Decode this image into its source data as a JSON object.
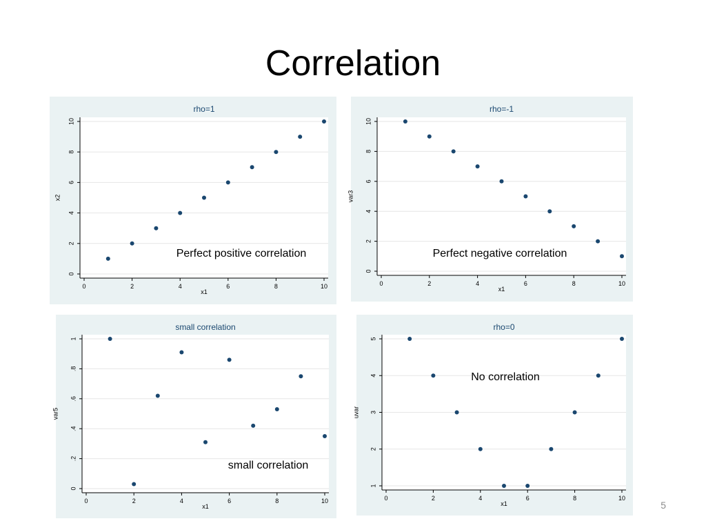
{
  "slide": {
    "title": "Correlation",
    "page_number": "5"
  },
  "colors": {
    "panel_bg": "#eaf2f3",
    "plot_bg": "#ffffff",
    "marker": "#1a476f",
    "title_text": "#1a476f",
    "grid": "#e6e6e6",
    "axis": "#000000"
  },
  "chart_data": [
    {
      "type": "scatter",
      "title": "rho=1",
      "xlabel": "x1",
      "ylabel": "x2",
      "annotation": "Perfect positive correlation",
      "xlim": [
        0,
        10
      ],
      "ylim": [
        0,
        10
      ],
      "xticks": [
        0,
        2,
        4,
        6,
        8,
        10
      ],
      "yticks": [
        0,
        2,
        4,
        6,
        8,
        10
      ],
      "ytick_labels": [
        "0",
        "2",
        "4",
        "6",
        "8",
        "10"
      ],
      "x": [
        1,
        2,
        3,
        4,
        5,
        6,
        7,
        8,
        9,
        10
      ],
      "y": [
        1,
        2,
        3,
        4,
        5,
        6,
        7,
        8,
        9,
        10
      ],
      "grid": true
    },
    {
      "type": "scatter",
      "title": "rho=-1",
      "xlabel": "x1",
      "ylabel": "var3",
      "annotation": "Perfect negative correlation",
      "xlim": [
        0,
        10
      ],
      "ylim": [
        0,
        10
      ],
      "xticks": [
        0,
        2,
        4,
        6,
        8,
        10
      ],
      "yticks": [
        0,
        2,
        4,
        6,
        8,
        10
      ],
      "ytick_labels": [
        "0",
        "2",
        "4",
        "6",
        "8",
        "10"
      ],
      "x": [
        1,
        2,
        3,
        4,
        5,
        6,
        7,
        8,
        9,
        10
      ],
      "y": [
        10,
        9,
        8,
        7,
        6,
        5,
        4,
        3,
        2,
        1
      ],
      "grid": true
    },
    {
      "type": "scatter",
      "title": "small correlation",
      "xlabel": "x1",
      "ylabel": "var5",
      "annotation": "small correlation",
      "xlim": [
        0,
        10
      ],
      "ylim": [
        0,
        1
      ],
      "xticks": [
        0,
        2,
        4,
        6,
        8,
        10
      ],
      "yticks": [
        0,
        0.2,
        0.4,
        0.6,
        0.8,
        1
      ],
      "ytick_labels": [
        "0",
        ".2",
        ".4",
        ".6",
        ".8",
        "1"
      ],
      "x": [
        1,
        2,
        3,
        4,
        5,
        6,
        7,
        8,
        9,
        10
      ],
      "y": [
        1.0,
        0.03,
        0.62,
        0.91,
        0.31,
        0.86,
        0.42,
        0.53,
        0.75,
        0.35
      ],
      "grid": true
    },
    {
      "type": "scatter",
      "title": "rho=0",
      "xlabel": "x1",
      "ylabel": "uvar",
      "annotation": "No correlation",
      "xlim": [
        0,
        10
      ],
      "ylim": [
        1,
        5
      ],
      "xticks": [
        0,
        2,
        4,
        6,
        8,
        10
      ],
      "yticks": [
        1,
        2,
        3,
        4,
        5
      ],
      "ytick_labels": [
        "1",
        "2",
        "3",
        "4",
        "5"
      ],
      "x": [
        1,
        2,
        3,
        4,
        5,
        6,
        7,
        8,
        9,
        10
      ],
      "y": [
        5,
        4,
        3,
        2,
        1,
        1,
        2,
        3,
        4,
        5
      ],
      "grid": true
    }
  ]
}
